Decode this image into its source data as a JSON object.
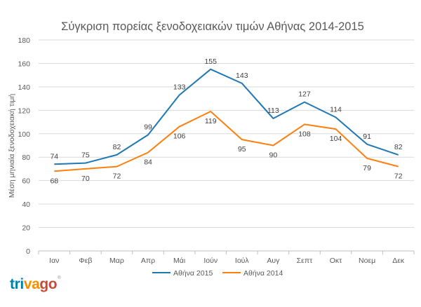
{
  "chart_data": {
    "type": "line",
    "title": "Σύγκριση πορείας ξενοδοχειακών τιμών Αθήνας 2014-2015",
    "xlabel": "",
    "ylabel": "Μέση μηνιαία ξενοδοχειακή τιμή",
    "categories": [
      "Ιαν",
      "Φεβ",
      "Μαρ",
      "Απρ",
      "Μάι",
      "Ιούν",
      "Ιούλ",
      "Αυγ",
      "Σεπτ",
      "Οκτ",
      "Νοεμ",
      "Δεκ"
    ],
    "ylim": [
      0,
      180
    ],
    "yticks": [
      0,
      20,
      40,
      60,
      80,
      100,
      120,
      140,
      160,
      180
    ],
    "grid": true,
    "legend_position": "bottom",
    "series": [
      {
        "name": "Αθήνα 2015",
        "color": "#1f77b4",
        "values": [
          74,
          75,
          82,
          99,
          133,
          155,
          143,
          113,
          127,
          114,
          91,
          82
        ]
      },
      {
        "name": "Αθήνα 2014",
        "color": "#ff7f0e",
        "values": [
          68,
          70,
          72,
          84,
          106,
          119,
          95,
          90,
          108,
          104,
          79,
          72
        ]
      }
    ]
  },
  "logo": {
    "part1": "tri",
    "part2": "va",
    "part3": "go",
    "mark": "®"
  }
}
